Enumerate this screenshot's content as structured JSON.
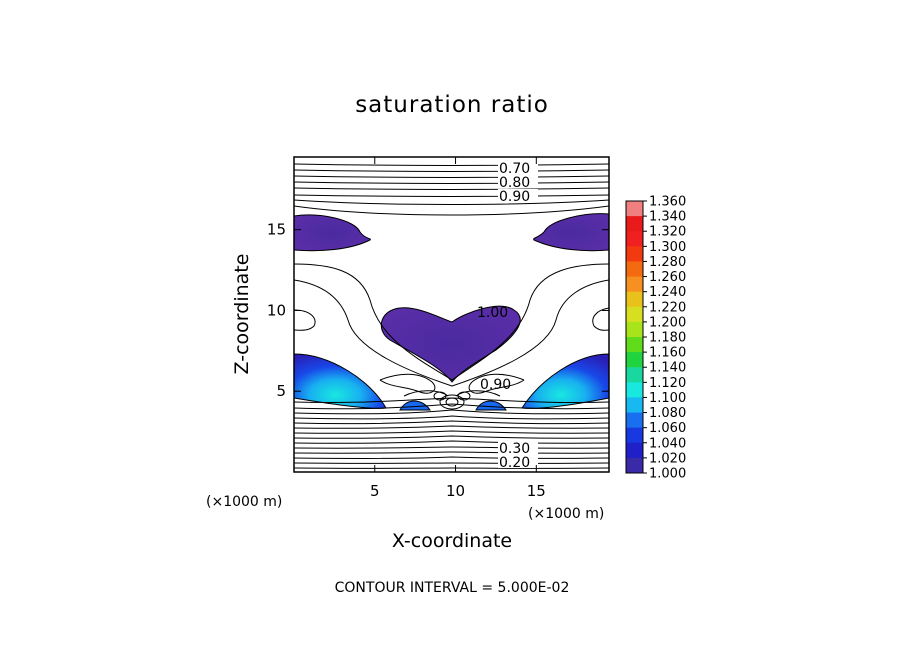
{
  "chart_data": {
    "type": "contour",
    "title": "saturation ratio",
    "xlabel": "X-coordinate",
    "ylabel": "Z-coordinate",
    "x_unit": "(×1000 m)",
    "z_unit": "(×1000 m)",
    "xlim": [
      0,
      19.5
    ],
    "ylim": [
      0,
      19.5
    ],
    "x_ticks": [
      5,
      10,
      15
    ],
    "y_ticks": [
      5,
      10,
      15
    ],
    "contour_labels": [
      "0.70",
      "0.80",
      "0.90",
      "1.00",
      "0.90",
      "0.30",
      "0.20"
    ],
    "contour_interval_text": "CONTOUR INTERVAL = 5.000E-02",
    "colorbar": {
      "min": 1.0,
      "max": 1.36,
      "labels": [
        "1.360",
        "1.340",
        "1.320",
        "1.300",
        "1.280",
        "1.260",
        "1.240",
        "1.220",
        "1.200",
        "1.180",
        "1.160",
        "1.140",
        "1.120",
        "1.100",
        "1.080",
        "1.060",
        "1.040",
        "1.020",
        "1.000"
      ],
      "colors": [
        "#f08080",
        "#e81a1a",
        "#f02020",
        "#f23a10",
        "#f46a10",
        "#f69020",
        "#e8c21a",
        "#d6e020",
        "#a8e41a",
        "#60dc1a",
        "#20d440",
        "#18d8a0",
        "#18e8e0",
        "#18b8f0",
        "#1870f0",
        "#1838e0",
        "#2020c8",
        "#3a2aa8",
        "#5a2c9a"
      ]
    }
  }
}
